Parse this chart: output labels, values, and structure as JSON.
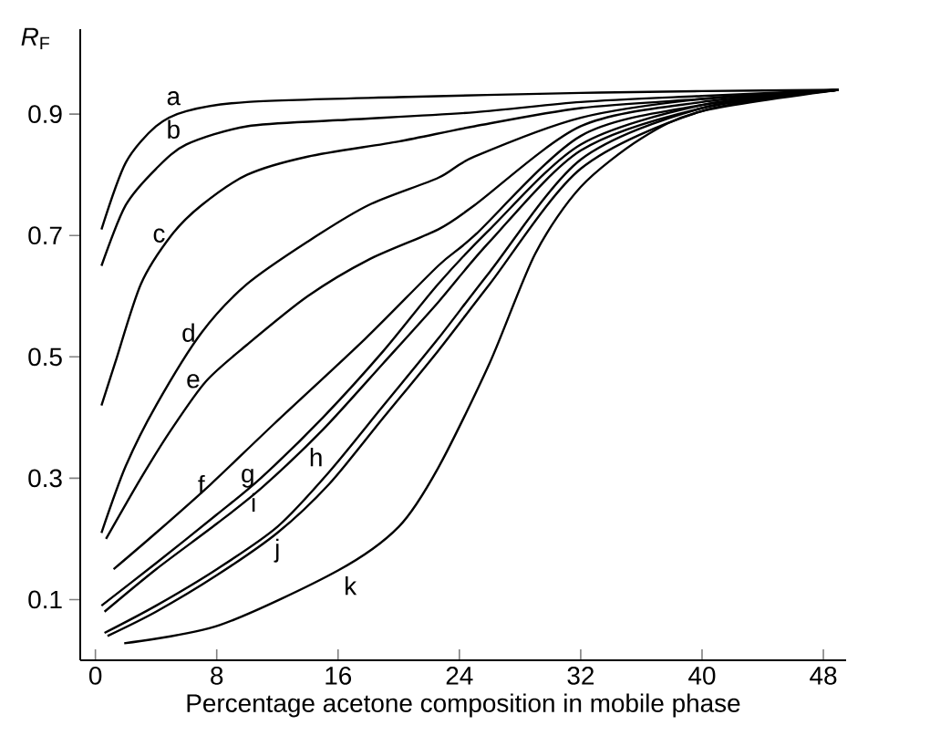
{
  "chart_data": {
    "type": "line",
    "xlabel": "Percentage acetone composition in mobile phase",
    "ylabel": "*R*$_{F}$",
    "xlim": [
      -1,
      49.5
    ],
    "ylim": [
      0,
      1.04
    ],
    "xticks": [
      0,
      8,
      16,
      24,
      32,
      40,
      48
    ],
    "yticks": [
      0.1,
      0.3,
      0.5,
      0.7,
      0.9
    ],
    "marker": "none",
    "line_style": "solid",
    "series": [
      {
        "name": "a",
        "color": "#000000",
        "x": [
          0.4,
          2,
          4,
          6,
          10,
          20,
          32,
          40,
          49
        ],
        "values": [
          0.71,
          0.82,
          0.88,
          0.905,
          0.92,
          0.928,
          0.935,
          0.938,
          0.94
        ]
      },
      {
        "name": "b",
        "color": "#000000",
        "x": [
          0.4,
          2,
          4,
          6,
          10,
          16,
          25,
          32,
          40,
          49
        ],
        "values": [
          0.65,
          0.75,
          0.81,
          0.85,
          0.88,
          0.89,
          0.903,
          0.92,
          0.93,
          0.94
        ]
      },
      {
        "name": "c",
        "color": "#000000",
        "x": [
          0.4,
          1.3,
          3,
          5,
          7,
          10,
          14,
          20,
          25,
          32,
          40,
          49
        ],
        "values": [
          0.42,
          0.49,
          0.62,
          0.7,
          0.75,
          0.8,
          0.83,
          0.855,
          0.88,
          0.91,
          0.925,
          0.94
        ]
      },
      {
        "name": "d",
        "color": "#000000",
        "x": [
          0.4,
          2,
          4,
          7,
          10,
          14,
          18,
          22.6,
          25,
          32,
          40,
          49
        ],
        "values": [
          0.21,
          0.32,
          0.42,
          0.54,
          0.62,
          0.69,
          0.75,
          0.795,
          0.83,
          0.894,
          0.925,
          0.94
        ]
      },
      {
        "name": "e",
        "color": "#000000",
        "x": [
          0.7,
          3,
          5,
          7.3,
          10,
          14,
          18,
          22.6,
          25,
          32,
          40,
          49
        ],
        "values": [
          0.2,
          0.3,
          0.38,
          0.46,
          0.52,
          0.6,
          0.66,
          0.71,
          0.75,
          0.88,
          0.92,
          0.94
        ]
      },
      {
        "name": "f",
        "color": "#000000",
        "x": [
          1.2,
          4,
          7.6,
          11.8,
          17.8,
          22.6,
          25,
          32,
          40,
          49
        ],
        "values": [
          0.15,
          0.21,
          0.29,
          0.39,
          0.53,
          0.65,
          0.7,
          0.864,
          0.915,
          0.94
        ]
      },
      {
        "name": "g",
        "color": "#000000",
        "x": [
          0.4,
          4,
          8,
          10.9,
          15,
          19,
          22.6,
          26,
          32,
          40,
          49
        ],
        "values": [
          0.09,
          0.16,
          0.24,
          0.3,
          0.4,
          0.51,
          0.62,
          0.71,
          0.85,
          0.915,
          0.94
        ]
      },
      {
        "name": "h",
        "color": "#000000",
        "x": [
          0.6,
          4,
          8,
          12,
          15.4,
          19,
          22.6,
          26,
          32,
          40,
          49
        ],
        "values": [
          0.045,
          0.09,
          0.15,
          0.22,
          0.31,
          0.42,
          0.53,
          0.64,
          0.825,
          0.91,
          0.94
        ]
      },
      {
        "name": "i",
        "color": "#000000",
        "x": [
          0.6,
          4,
          8,
          11,
          15,
          19,
          22.6,
          26,
          32,
          40,
          49
        ],
        "values": [
          0.08,
          0.15,
          0.225,
          0.285,
          0.38,
          0.49,
          0.59,
          0.69,
          0.84,
          0.91,
          0.94
        ]
      },
      {
        "name": "j",
        "color": "#000000",
        "x": [
          0.8,
          4,
          8,
          12,
          15.4,
          19,
          22.6,
          26,
          32,
          40,
          49
        ],
        "values": [
          0.04,
          0.08,
          0.14,
          0.21,
          0.29,
          0.4,
          0.51,
          0.62,
          0.81,
          0.905,
          0.94
        ]
      },
      {
        "name": "k",
        "color": "#000000",
        "x": [
          1.9,
          8.2,
          16,
          20,
          22.6,
          26,
          29,
          32,
          36,
          40,
          49
        ],
        "values": [
          0.028,
          0.058,
          0.148,
          0.22,
          0.317,
          0.49,
          0.67,
          0.78,
          0.86,
          0.905,
          0.94
        ]
      }
    ]
  }
}
